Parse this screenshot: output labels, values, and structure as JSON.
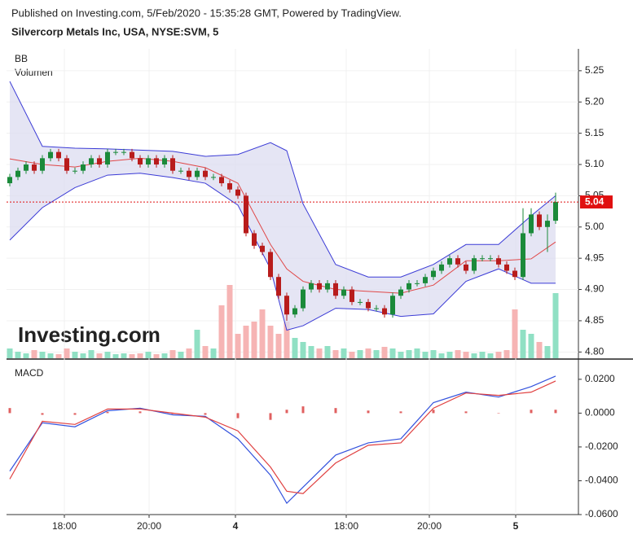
{
  "chart_data": [
    {
      "type": "candlestick",
      "source": "Published on Investing.com, 5/Feb/2020 - 15:35:28 GMT, Powered by TradingView.",
      "title": "Silvercorp Metals Inc, USA, NYSE:SVM, 5",
      "indicators": [
        "BB",
        "Volumen"
      ],
      "watermark": "Investing.com",
      "up_color": "#1b8a3a",
      "down_color": "#b81c1c",
      "volume_up_color": "#90e0c4",
      "volume_down_color": "#f6b4b4",
      "open": [
        5.07,
        5.08,
        5.09,
        5.1,
        5.09,
        5.11,
        5.12,
        5.11,
        5.09,
        5.09,
        5.1,
        5.11,
        5.1,
        5.12,
        5.12,
        5.12,
        5.11,
        5.1,
        5.11,
        5.1,
        5.11,
        5.09,
        5.09,
        5.08,
        5.09,
        5.08,
        5.08,
        5.07,
        5.06,
        5.05,
        4.99,
        4.97,
        4.96,
        4.92,
        4.89,
        4.86,
        4.87,
        4.9,
        4.91,
        4.9,
        4.91,
        4.89,
        4.9,
        4.88,
        4.88,
        4.87,
        4.87,
        4.86,
        4.89,
        4.9,
        4.91,
        4.91,
        4.92,
        4.93,
        4.94,
        4.95,
        4.94,
        4.93,
        4.95,
        4.95,
        4.95,
        4.94,
        4.93,
        4.92,
        4.99,
        5.02,
        5.0,
        5.01
      ],
      "high": [
        5.085,
        5.095,
        5.105,
        5.105,
        5.115,
        5.125,
        5.125,
        5.115,
        5.095,
        5.105,
        5.115,
        5.115,
        5.125,
        5.125,
        5.125,
        5.125,
        5.115,
        5.115,
        5.115,
        5.115,
        5.115,
        5.095,
        5.095,
        5.095,
        5.095,
        5.085,
        5.085,
        5.075,
        5.065,
        5.055,
        4.995,
        4.975,
        4.965,
        4.925,
        4.895,
        4.875,
        4.905,
        4.915,
        4.915,
        4.915,
        4.915,
        4.905,
        4.905,
        4.885,
        4.885,
        4.875,
        4.875,
        4.895,
        4.905,
        4.915,
        4.915,
        4.925,
        4.935,
        4.945,
        4.955,
        4.955,
        4.945,
        4.955,
        4.955,
        4.955,
        4.955,
        4.945,
        4.935,
        5.03,
        5.03,
        5.025,
        5.02,
        5.055
      ],
      "low": [
        5.065,
        5.075,
        5.085,
        5.085,
        5.085,
        5.105,
        5.105,
        5.085,
        5.085,
        5.085,
        5.095,
        5.095,
        5.095,
        5.115,
        5.115,
        5.105,
        5.095,
        5.095,
        5.095,
        5.095,
        5.085,
        5.085,
        5.075,
        5.075,
        5.075,
        5.075,
        5.065,
        5.055,
        5.045,
        4.985,
        4.965,
        4.955,
        4.915,
        4.885,
        4.85,
        4.855,
        4.865,
        4.895,
        4.895,
        4.895,
        4.885,
        4.885,
        4.875,
        4.875,
        4.865,
        4.865,
        4.855,
        4.855,
        4.885,
        4.895,
        4.905,
        4.905,
        4.915,
        4.925,
        4.935,
        4.935,
        4.925,
        4.925,
        4.945,
        4.945,
        4.935,
        4.925,
        4.915,
        4.915,
        4.985,
        4.995,
        4.96,
        5.005
      ],
      "close": [
        5.08,
        5.09,
        5.1,
        5.09,
        5.11,
        5.12,
        5.11,
        5.09,
        5.09,
        5.1,
        5.11,
        5.1,
        5.12,
        5.12,
        5.12,
        5.11,
        5.1,
        5.11,
        5.1,
        5.11,
        5.09,
        5.09,
        5.08,
        5.09,
        5.08,
        5.08,
        5.07,
        5.06,
        5.05,
        4.99,
        4.97,
        4.96,
        4.92,
        4.89,
        4.86,
        4.87,
        4.9,
        4.91,
        4.9,
        4.91,
        4.89,
        4.9,
        4.88,
        4.88,
        4.87,
        4.87,
        4.86,
        4.89,
        4.9,
        4.91,
        4.91,
        4.92,
        4.93,
        4.94,
        4.95,
        4.94,
        4.93,
        4.95,
        4.95,
        4.95,
        4.94,
        4.93,
        4.92,
        4.99,
        5.02,
        5.0,
        5.01,
        5.04
      ],
      "volume": [
        12,
        8,
        6,
        10,
        8,
        6,
        5,
        12,
        8,
        6,
        10,
        6,
        8,
        5,
        6,
        5,
        6,
        8,
        5,
        6,
        10,
        8,
        12,
        35,
        15,
        12,
        65,
        90,
        30,
        40,
        45,
        60,
        40,
        30,
        45,
        25,
        20,
        15,
        12,
        15,
        10,
        12,
        8,
        10,
        12,
        10,
        14,
        12,
        8,
        10,
        12,
        8,
        10,
        6,
        8,
        10,
        8,
        6,
        8,
        6,
        8,
        10,
        60,
        35,
        30,
        20,
        15,
        80
      ],
      "bb": {
        "x": [
          0,
          4,
          8,
          12,
          16,
          20,
          24,
          28,
          32,
          34,
          36,
          40,
          44,
          48,
          52,
          56,
          60,
          64,
          67
        ],
        "upper": [
          5.233,
          5.129,
          5.126,
          5.125,
          5.123,
          5.121,
          5.113,
          5.116,
          5.135,
          5.122,
          5.037,
          4.94,
          4.92,
          4.92,
          4.94,
          4.972,
          4.972,
          5.018,
          5.05
        ],
        "middle": [
          5.109,
          5.1,
          5.096,
          5.105,
          5.11,
          5.105,
          5.095,
          5.07,
          4.972,
          4.933,
          4.913,
          4.9,
          4.897,
          4.894,
          4.907,
          4.946,
          4.946,
          4.949,
          4.976
        ],
        "lower": [
          4.979,
          5.031,
          5.063,
          5.083,
          5.086,
          5.079,
          5.07,
          5.035,
          4.933,
          4.835,
          4.842,
          4.87,
          4.868,
          4.857,
          4.861,
          4.913,
          4.933,
          4.91,
          4.91
        ],
        "band_color": "#dcdcf0",
        "line_color": "#3b3bd6",
        "middle_color": "#e04848"
      },
      "last_price": 5.04,
      "last_color": "#e01010",
      "xlim": [
        -0.4,
        69.8
      ],
      "ylim": [
        4.79,
        5.285
      ],
      "yticks": [
        {
          "value": 4.8,
          "label": "4.80"
        },
        {
          "value": 4.85,
          "label": "4.85"
        },
        {
          "value": 4.9,
          "label": "4.90"
        },
        {
          "value": 4.95,
          "label": "4.95"
        },
        {
          "value": 5.0,
          "label": "5.00"
        },
        {
          "value": 5.05,
          "label": "5.05"
        },
        {
          "value": 5.1,
          "label": "5.10"
        },
        {
          "value": 5.15,
          "label": "5.15"
        },
        {
          "value": 5.2,
          "label": "5.20"
        },
        {
          "value": 5.25,
          "label": "5.25"
        }
      ],
      "xticks": [
        {
          "value": 6.7,
          "label": "18:00"
        },
        {
          "value": 17.1,
          "label": "20:00"
        },
        {
          "value": 27.7,
          "label": "4"
        },
        {
          "value": 41.3,
          "label": "18:00"
        },
        {
          "value": 51.5,
          "label": "20:00"
        },
        {
          "value": 62.1,
          "label": "5"
        }
      ],
      "grid": true
    },
    {
      "type": "macd",
      "title": "MACD",
      "x": [
        0,
        4,
        8,
        12,
        16,
        20,
        24,
        28,
        32,
        34,
        36,
        40,
        44,
        48,
        52,
        56,
        60,
        64,
        67
      ],
      "series": [
        {
          "color": "#3352dd",
          "values": [
            -0.0343,
            -0.0057,
            -0.0081,
            0.0014,
            0.0029,
            -0.001,
            -0.0019,
            -0.0152,
            -0.0367,
            -0.0533,
            -0.0438,
            -0.0248,
            -0.0176,
            -0.0152,
            0.0062,
            0.0124,
            0.0095,
            0.0157,
            0.0219
          ]
        },
        {
          "color": "#e04040",
          "values": [
            -0.039,
            -0.0048,
            -0.0067,
            0.0024,
            0.0024,
            0,
            -0.0024,
            -0.0105,
            -0.0319,
            -0.0462,
            -0.0476,
            -0.0295,
            -0.019,
            -0.0176,
            0.0029,
            0.0119,
            0.0105,
            0.0124,
            0.019
          ]
        }
      ],
      "histogram": [
        0.003,
        -0.001,
        -0.001,
        0.0008,
        0.001,
        -0.0005,
        -0.001,
        -0.003,
        -0.004,
        0.002,
        0.004,
        0.003,
        0.0015,
        0.001,
        0.002,
        0.001,
        0,
        0.002,
        0.002
      ],
      "histogram_color": "#e06060",
      "xlim": [
        -0.4,
        69.8
      ],
      "ylim": [
        -0.06,
        0.0286
      ],
      "yticks": [
        {
          "value": 0.02,
          "label": "0.0200"
        },
        {
          "value": 0,
          "label": "0.0000"
        },
        {
          "value": -0.02,
          "label": "-0.0200"
        },
        {
          "value": -0.04,
          "label": "-0.0400"
        },
        {
          "value": -0.06,
          "label": "-0.0600"
        }
      ]
    }
  ]
}
